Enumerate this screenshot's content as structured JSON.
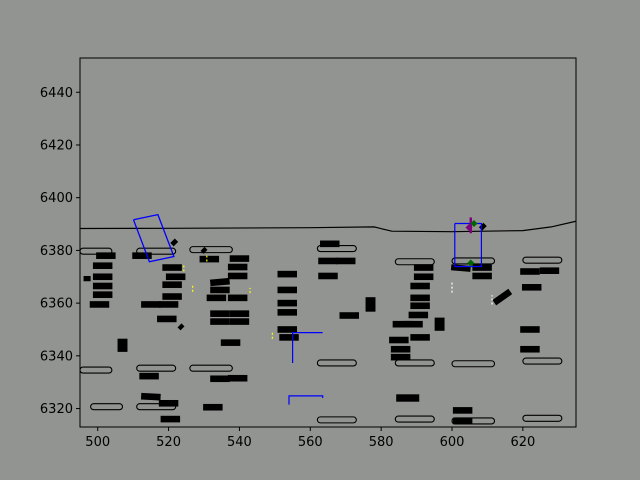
{
  "chart_data": {
    "type": "scatter",
    "title": "",
    "xlabel": "",
    "ylabel": "",
    "xlim": [
      495,
      635
    ],
    "ylim": [
      6313,
      6453
    ],
    "x_ticks": [
      500,
      520,
      540,
      560,
      580,
      600,
      620
    ],
    "y_ticks": [
      6320,
      6340,
      6360,
      6380,
      6400,
      6420,
      6440
    ],
    "grid": false,
    "legend": "none",
    "colors": {
      "figure_background": "#929491",
      "plot_background": "#929491",
      "road_boundary": "#000000",
      "vehicles": "#000000",
      "ego_box": "#0000ff",
      "route": "#0000ff",
      "heading_marker": "#800080",
      "agent_marker": "#006400",
      "lane_marker_yellow": "#ffff00",
      "lane_marker_white": "#ffffff"
    },
    "road_boundary": [
      [
        495,
        6388.3
      ],
      [
        520,
        6388.4
      ],
      [
        560,
        6388.6
      ],
      [
        578,
        6388.9
      ],
      [
        583,
        6387.3
      ],
      [
        600,
        6387.1
      ],
      [
        620,
        6387.5
      ],
      [
        628,
        6388.9
      ],
      [
        635,
        6391.1
      ]
    ],
    "parking_islands": [
      {
        "x0": 495,
        "x1": 504,
        "y": 6379.7
      },
      {
        "x0": 495,
        "x1": 504,
        "y": 6334.6
      },
      {
        "x0": 498,
        "x1": 507,
        "y": 6320.7
      },
      {
        "x0": 511,
        "x1": 522,
        "y": 6379.7
      },
      {
        "x0": 511,
        "x1": 522,
        "y": 6335.3
      },
      {
        "x0": 511,
        "x1": 522,
        "y": 6320.7
      },
      {
        "x0": 526,
        "x1": 538,
        "y": 6380.3
      },
      {
        "x0": 526,
        "x1": 538,
        "y": 6335.3
      },
      {
        "x0": 562,
        "x1": 573,
        "y": 6380.7
      },
      {
        "x0": 562,
        "x1": 573,
        "y": 6337.3
      },
      {
        "x0": 562,
        "x1": 573,
        "y": 6315.7
      },
      {
        "x0": 584,
        "x1": 595,
        "y": 6375.7
      },
      {
        "x0": 584,
        "x1": 595,
        "y": 6337.3
      },
      {
        "x0": 584,
        "x1": 595,
        "y": 6316.0
      },
      {
        "x0": 600,
        "x1": 612,
        "y": 6376.0
      },
      {
        "x0": 600,
        "x1": 612,
        "y": 6337.0
      },
      {
        "x0": 600,
        "x1": 612,
        "y": 6315.3
      },
      {
        "x0": 620,
        "x1": 631,
        "y": 6376.3
      },
      {
        "x0": 620,
        "x1": 631,
        "y": 6338.0
      },
      {
        "x0": 620,
        "x1": 631,
        "y": 6316.3
      }
    ],
    "vehicles": [
      {
        "x": 497,
        "y": 6369.3,
        "w": 2.0,
        "h": 2.0,
        "a": 0
      },
      {
        "x": 501.4,
        "y": 6374.2,
        "w": 5.5,
        "h": 2.5,
        "a": 0
      },
      {
        "x": 501.4,
        "y": 6370.0,
        "w": 5.5,
        "h": 2.5,
        "a": 0
      },
      {
        "x": 501.4,
        "y": 6366.5,
        "w": 5.5,
        "h": 2.5,
        "a": 0
      },
      {
        "x": 501.4,
        "y": 6363.2,
        "w": 5.5,
        "h": 2.5,
        "a": 0
      },
      {
        "x": 500.5,
        "y": 6359.5,
        "w": 5.5,
        "h": 2.5,
        "a": 0
      },
      {
        "x": 502.3,
        "y": 6378.0,
        "w": 5.5,
        "h": 2.5,
        "a": 0
      },
      {
        "x": 512.5,
        "y": 6378.0,
        "w": 5.5,
        "h": 2.5,
        "a": 0
      },
      {
        "x": 507,
        "y": 6344.0,
        "w": 2.8,
        "h": 5.0,
        "a": 0
      },
      {
        "x": 515,
        "y": 6359.5,
        "w": 5.5,
        "h": 2.5,
        "a": 0
      },
      {
        "x": 521,
        "y": 6373.5,
        "w": 5.5,
        "h": 2.5,
        "a": 0
      },
      {
        "x": 522,
        "y": 6370.0,
        "w": 5.5,
        "h": 2.5,
        "a": 0
      },
      {
        "x": 521,
        "y": 6367.0,
        "w": 5.5,
        "h": 2.5,
        "a": 0
      },
      {
        "x": 521,
        "y": 6362.5,
        "w": 5.5,
        "h": 2.5,
        "a": 0
      },
      {
        "x": 520,
        "y": 6359.5,
        "w": 5.5,
        "h": 2.5,
        "a": 0
      },
      {
        "x": 519.5,
        "y": 6354.0,
        "w": 5.5,
        "h": 2.5,
        "a": 0
      },
      {
        "x": 514.5,
        "y": 6332.3,
        "w": 5.5,
        "h": 2.5,
        "a": 0
      },
      {
        "x": 515,
        "y": 6324.5,
        "w": 5.5,
        "h": 2.5,
        "a": -3
      },
      {
        "x": 520,
        "y": 6322.0,
        "w": 5.5,
        "h": 2.5,
        "a": 0
      },
      {
        "x": 520.5,
        "y": 6316.0,
        "w": 5.5,
        "h": 2.5,
        "a": 0
      },
      {
        "x": 531.5,
        "y": 6376.7,
        "w": 5.5,
        "h": 2.5,
        "a": 0
      },
      {
        "x": 534.5,
        "y": 6368.0,
        "w": 5.5,
        "h": 2.5,
        "a": 5
      },
      {
        "x": 534.5,
        "y": 6365.0,
        "w": 5.5,
        "h": 2.5,
        "a": 0
      },
      {
        "x": 533.5,
        "y": 6362.0,
        "w": 5.5,
        "h": 2.5,
        "a": 0
      },
      {
        "x": 539.5,
        "y": 6362.0,
        "w": 5.5,
        "h": 2.5,
        "a": 0
      },
      {
        "x": 539.5,
        "y": 6373.7,
        "w": 5.5,
        "h": 2.5,
        "a": 0
      },
      {
        "x": 540,
        "y": 6376.9,
        "w": 5.5,
        "h": 2.5,
        "a": 0
      },
      {
        "x": 539.5,
        "y": 6370.3,
        "w": 5.5,
        "h": 2.5,
        "a": 0
      },
      {
        "x": 534.5,
        "y": 6356.0,
        "w": 5.5,
        "h": 2.5,
        "a": 0
      },
      {
        "x": 534.5,
        "y": 6353.0,
        "w": 5.5,
        "h": 2.5,
        "a": 0
      },
      {
        "x": 540,
        "y": 6356.0,
        "w": 5.5,
        "h": 2.5,
        "a": 0
      },
      {
        "x": 540,
        "y": 6353.0,
        "w": 5.5,
        "h": 2.5,
        "a": 0
      },
      {
        "x": 537.5,
        "y": 6345.0,
        "w": 5.5,
        "h": 2.5,
        "a": 0
      },
      {
        "x": 534.5,
        "y": 6331.3,
        "w": 5.5,
        "h": 2.5,
        "a": 0
      },
      {
        "x": 539.5,
        "y": 6331.5,
        "w": 5.5,
        "h": 2.5,
        "a": 0
      },
      {
        "x": 532.5,
        "y": 6320.5,
        "w": 5.5,
        "h": 2.5,
        "a": 0
      },
      {
        "x": 523.5,
        "y": 6351.0,
        "w": 1.6,
        "h": 1.6,
        "a": 45
      },
      {
        "x": 530,
        "y": 6380.0,
        "w": 1.6,
        "h": 1.6,
        "a": 45
      },
      {
        "x": 521.6,
        "y": 6383.0,
        "w": 1.8,
        "h": 1.8,
        "a": 45
      },
      {
        "x": 553.5,
        "y": 6371.0,
        "w": 5.5,
        "h": 2.5,
        "a": 0
      },
      {
        "x": 553.5,
        "y": 6365.0,
        "w": 5.5,
        "h": 2.5,
        "a": 0
      },
      {
        "x": 553.5,
        "y": 6360.0,
        "w": 5.5,
        "h": 2.5,
        "a": 0
      },
      {
        "x": 553.5,
        "y": 6356.5,
        "w": 5.5,
        "h": 2.5,
        "a": 0
      },
      {
        "x": 553.5,
        "y": 6350.0,
        "w": 5.5,
        "h": 2.5,
        "a": 0
      },
      {
        "x": 554,
        "y": 6347.0,
        "w": 5.5,
        "h": 2.5,
        "a": 0
      },
      {
        "x": 565.5,
        "y": 6382.5,
        "w": 5.5,
        "h": 2.5,
        "a": 0
      },
      {
        "x": 565,
        "y": 6376.0,
        "w": 5.5,
        "h": 2.5,
        "a": 0
      },
      {
        "x": 570,
        "y": 6376.0,
        "w": 5.5,
        "h": 2.5,
        "a": 0
      },
      {
        "x": 565,
        "y": 6370.3,
        "w": 5.5,
        "h": 2.5,
        "a": 0
      },
      {
        "x": 571,
        "y": 6355.3,
        "w": 5.5,
        "h": 2.5,
        "a": 0
      },
      {
        "x": 577,
        "y": 6359.5,
        "w": 2.8,
        "h": 5.5,
        "a": 0
      },
      {
        "x": 586,
        "y": 6352.0,
        "w": 5.5,
        "h": 2.5,
        "a": 0
      },
      {
        "x": 585,
        "y": 6346.0,
        "w": 5.5,
        "h": 2.5,
        "a": 0
      },
      {
        "x": 585.5,
        "y": 6342.5,
        "w": 5.5,
        "h": 2.5,
        "a": 0
      },
      {
        "x": 585.5,
        "y": 6339.5,
        "w": 5.5,
        "h": 2.5,
        "a": 0
      },
      {
        "x": 589,
        "y": 6352.0,
        "w": 5.5,
        "h": 2.5,
        "a": 0
      },
      {
        "x": 590.5,
        "y": 6355.5,
        "w": 5.5,
        "h": 2.5,
        "a": 0
      },
      {
        "x": 591,
        "y": 6359.0,
        "w": 5.5,
        "h": 2.5,
        "a": 0
      },
      {
        "x": 591,
        "y": 6362.0,
        "w": 5.5,
        "h": 2.5,
        "a": 0
      },
      {
        "x": 591,
        "y": 6366.5,
        "w": 5.5,
        "h": 2.5,
        "a": 0
      },
      {
        "x": 592,
        "y": 6370.0,
        "w": 5.5,
        "h": 2.5,
        "a": 0
      },
      {
        "x": 592,
        "y": 6373.5,
        "w": 5.5,
        "h": 2.5,
        "a": 0
      },
      {
        "x": 591,
        "y": 6347.0,
        "w": 5.5,
        "h": 2.5,
        "a": 0
      },
      {
        "x": 587.5,
        "y": 6324.0,
        "w": 6.5,
        "h": 2.8,
        "a": 0
      },
      {
        "x": 596.5,
        "y": 6352.0,
        "w": 2.8,
        "h": 5.0,
        "a": 0
      },
      {
        "x": 602.5,
        "y": 6373.3,
        "w": 5.5,
        "h": 2.3,
        "a": -5
      },
      {
        "x": 608.5,
        "y": 6373.5,
        "w": 5.5,
        "h": 2.5,
        "a": 0
      },
      {
        "x": 608.5,
        "y": 6370.3,
        "w": 5.5,
        "h": 2.5,
        "a": 0
      },
      {
        "x": 603,
        "y": 6319.3,
        "w": 5.5,
        "h": 2.5,
        "a": 0
      },
      {
        "x": 603,
        "y": 6315.3,
        "w": 5.5,
        "h": 2.5,
        "a": 0
      },
      {
        "x": 614.2,
        "y": 6362.3,
        "w": 5.5,
        "h": 2.5,
        "a": 35
      },
      {
        "x": 608.7,
        "y": 6389.0,
        "w": 1.8,
        "h": 1.8,
        "a": 45
      },
      {
        "x": 622,
        "y": 6372.0,
        "w": 5.5,
        "h": 2.5,
        "a": 0
      },
      {
        "x": 627.5,
        "y": 6372.3,
        "w": 5.5,
        "h": 2.5,
        "a": 0
      },
      {
        "x": 622.5,
        "y": 6366.0,
        "w": 5.5,
        "h": 2.5,
        "a": 0
      },
      {
        "x": 622,
        "y": 6350.0,
        "w": 5.5,
        "h": 2.5,
        "a": 0
      },
      {
        "x": 622,
        "y": 6342.5,
        "w": 5.5,
        "h": 2.5,
        "a": 0
      }
    ],
    "ego_box": [
      [
        510.1,
        6391.6
      ],
      [
        517.0,
        6393.6
      ],
      [
        521.5,
        6377.7
      ],
      [
        514.6,
        6375.7
      ],
      [
        510.1,
        6391.6
      ]
    ],
    "planned_route": [
      [
        [
          555,
          6337.3
        ],
        [
          555,
          6348.8
        ],
        [
          563.5,
          6348.8
        ]
      ],
      [
        [
          554,
          6321.5
        ],
        [
          554,
          6324.8
        ],
        [
          563.5,
          6324.8
        ],
        [
          563.5,
          6324.0
        ]
      ],
      [
        [
          600.8,
          6390.2
        ],
        [
          600.8,
          6373.9
        ],
        [
          608.3,
          6373.9
        ],
        [
          608.3,
          6390.2
        ],
        [
          600.8,
          6390.2
        ]
      ]
    ],
    "heading_marker": {
      "x": 605.3,
      "y0": 6386.5,
      "y1": 6392.5
    },
    "agent_markers": [
      {
        "x": 604.8,
        "y": 6388.7,
        "color": "#800080"
      },
      {
        "x": 606.2,
        "y": 6390.2,
        "color": "#006400"
      },
      {
        "x": 605.3,
        "y": 6375.2,
        "color": "#006400"
      }
    ],
    "lane_markers": [
      {
        "x": 524.3,
        "y0": 6372.0,
        "y1": 6374.5,
        "color": "#ffff00"
      },
      {
        "x": 526.8,
        "y0": 6364.3,
        "y1": 6366.8,
        "color": "#ffff00"
      },
      {
        "x": 530.8,
        "y0": 6375.8,
        "y1": 6378.0,
        "color": "#ffff00"
      },
      {
        "x": 543,
        "y0": 6363.8,
        "y1": 6365.8,
        "color": "#ffff00"
      },
      {
        "x": 549.3,
        "y0": 6346.5,
        "y1": 6349.0,
        "color": "#ffff00"
      },
      {
        "x": 600,
        "y0": 6364.0,
        "y1": 6368.0,
        "color": "#ffffff"
      },
      {
        "x": 611.3,
        "y0": 6359.5,
        "y1": 6363.0,
        "color": "#ffffff"
      }
    ]
  }
}
